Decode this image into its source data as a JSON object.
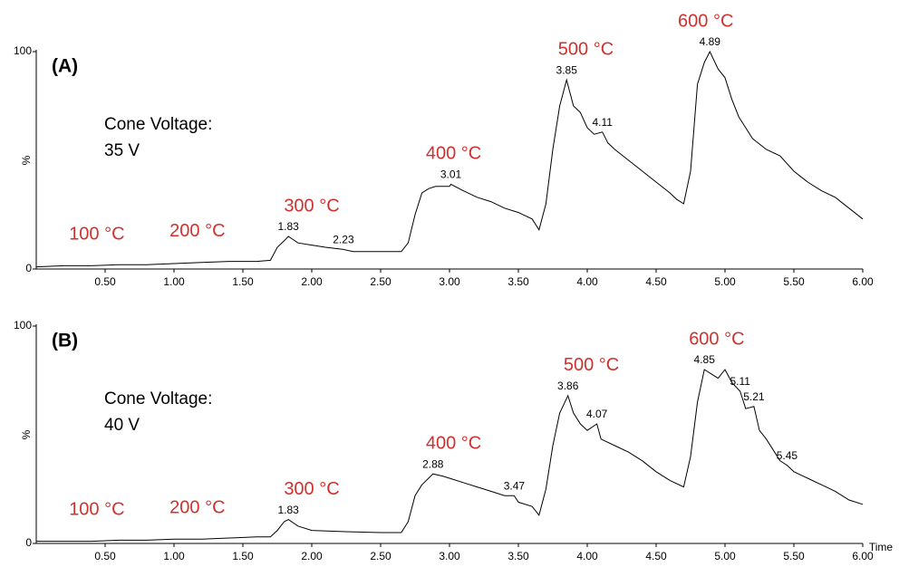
{
  "chart_data": [
    {
      "type": "line",
      "panel_label": "(A)",
      "note": [
        "Cone Voltage:",
        "35 V"
      ],
      "y_label": "%",
      "color": "#000000",
      "label_color": "#d0312d",
      "x": [
        0,
        0.2,
        0.4,
        0.6,
        0.8,
        1.0,
        1.2,
        1.4,
        1.6,
        1.7,
        1.75,
        1.8,
        1.83,
        1.9,
        2.0,
        2.1,
        2.23,
        2.3,
        2.5,
        2.65,
        2.7,
        2.75,
        2.8,
        2.85,
        2.9,
        3.0,
        3.01,
        3.1,
        3.2,
        3.3,
        3.4,
        3.5,
        3.6,
        3.65,
        3.7,
        3.75,
        3.8,
        3.85,
        3.9,
        3.95,
        4.0,
        4.05,
        4.11,
        4.15,
        4.2,
        4.3,
        4.4,
        4.5,
        4.6,
        4.65,
        4.7,
        4.75,
        4.8,
        4.85,
        4.89,
        4.95,
        5.0,
        5.05,
        5.1,
        5.15,
        5.2,
        5.3,
        5.4,
        5.5,
        5.6,
        5.7,
        5.8,
        5.9,
        6.0
      ],
      "values": [
        1,
        1.5,
        1.5,
        2,
        2,
        2.5,
        3,
        3.5,
        3.5,
        4,
        10,
        13,
        15,
        12,
        11,
        10,
        9,
        8,
        8,
        8,
        12,
        25,
        35,
        37,
        38,
        38,
        39,
        36,
        33,
        31,
        28,
        26,
        23,
        18,
        30,
        55,
        75,
        87,
        75,
        72,
        65,
        62,
        63,
        58,
        55,
        50,
        45,
        40,
        35,
        32,
        30,
        45,
        85,
        95,
        100,
        92,
        88,
        78,
        70,
        65,
        60,
        55,
        52,
        45,
        40,
        36,
        33,
        28,
        23
      ],
      "xlim": [
        0,
        6
      ],
      "ylim": [
        0,
        100
      ],
      "xticks": [
        {
          "value": 0.5,
          "label": "0.50"
        },
        {
          "value": 1,
          "label": "1.00"
        },
        {
          "value": 1.5,
          "label": "1.50"
        },
        {
          "value": 2,
          "label": "2.00"
        },
        {
          "value": 2.5,
          "label": "2.50"
        },
        {
          "value": 3,
          "label": "3.00"
        },
        {
          "value": 3.5,
          "label": "3.50"
        },
        {
          "value": 4,
          "label": "4.00"
        },
        {
          "value": 4.5,
          "label": "4.50"
        },
        {
          "value": 5,
          "label": "5.00"
        },
        {
          "value": 5.5,
          "label": "5.50"
        },
        {
          "value": 6,
          "label": "6.00"
        }
      ],
      "yticks": [
        0,
        100
      ],
      "peak_labels": [
        {
          "label": "1.83",
          "x": 1.83
        },
        {
          "label": "2.23",
          "x": 2.23
        },
        {
          "label": "3.01",
          "x": 3.01
        },
        {
          "label": "3.85",
          "x": 3.85
        },
        {
          "label": "4.11",
          "x": 4.11
        },
        {
          "label": "4.89",
          "x": 4.89
        }
      ],
      "temperature_labels": [
        {
          "text": "100 °C",
          "x": 0.44
        },
        {
          "text": "200 °C",
          "x": 1.17
        },
        {
          "text": "300 °C",
          "x": 2.0
        },
        {
          "text": "400 °C",
          "x": 3.03
        },
        {
          "text": "500 °C",
          "x": 3.99
        },
        {
          "text": "600 °C",
          "x": 4.86
        }
      ]
    },
    {
      "type": "line",
      "panel_label": "(B)",
      "note": [
        "Cone Voltage:",
        "40 V"
      ],
      "y_label": "%",
      "x_label": "Time",
      "color": "#000000",
      "label_color": "#d0312d",
      "x": [
        0,
        0.2,
        0.4,
        0.6,
        0.8,
        1.0,
        1.2,
        1.4,
        1.6,
        1.7,
        1.75,
        1.8,
        1.83,
        1.9,
        2.0,
        2.2,
        2.5,
        2.65,
        2.7,
        2.75,
        2.8,
        2.88,
        2.95,
        3.0,
        3.1,
        3.2,
        3.3,
        3.4,
        3.47,
        3.5,
        3.6,
        3.65,
        3.7,
        3.75,
        3.8,
        3.86,
        3.9,
        3.95,
        4.0,
        4.07,
        4.1,
        4.2,
        4.3,
        4.4,
        4.5,
        4.6,
        4.7,
        4.75,
        4.8,
        4.85,
        4.9,
        4.95,
        5.0,
        5.05,
        5.11,
        5.15,
        5.21,
        5.25,
        5.3,
        5.4,
        5.45,
        5.5,
        5.6,
        5.7,
        5.8,
        5.9,
        6.0
      ],
      "values": [
        1,
        1,
        1,
        1.5,
        1.5,
        2,
        2,
        2.5,
        3,
        3,
        6,
        10,
        11,
        8,
        6,
        5.5,
        5,
        5,
        10,
        22,
        27,
        32,
        31,
        30,
        28,
        26,
        24,
        22,
        22,
        19,
        17,
        13,
        25,
        45,
        60,
        68,
        60,
        55,
        52,
        55,
        48,
        45,
        42,
        38,
        33,
        29,
        26,
        40,
        65,
        80,
        78,
        76,
        80,
        74,
        70,
        62,
        63,
        52,
        48,
        38,
        36,
        33,
        30,
        27,
        24,
        20,
        18
      ],
      "xlim": [
        0,
        6
      ],
      "ylim": [
        0,
        100
      ],
      "xticks": [
        {
          "value": 0.5,
          "label": "0.50"
        },
        {
          "value": 1,
          "label": "1.00"
        },
        {
          "value": 1.5,
          "label": "1.50"
        },
        {
          "value": 2,
          "label": "2.00"
        },
        {
          "value": 2.5,
          "label": "2.50"
        },
        {
          "value": 3,
          "label": "3.00"
        },
        {
          "value": 3.5,
          "label": "3.50"
        },
        {
          "value": 4,
          "label": "4.00"
        },
        {
          "value": 4.5,
          "label": "4.50"
        },
        {
          "value": 5,
          "label": "5.00"
        },
        {
          "value": 5.5,
          "label": "5.50"
        },
        {
          "value": 6,
          "label": "6.00"
        }
      ],
      "yticks": [
        0,
        100
      ],
      "peak_labels": [
        {
          "label": "1.83",
          "x": 1.83
        },
        {
          "label": "2.88",
          "x": 2.88
        },
        {
          "label": "3.47",
          "x": 3.47
        },
        {
          "label": "3.86",
          "x": 3.86
        },
        {
          "label": "4.07",
          "x": 4.07
        },
        {
          "label": "4.85",
          "x": 4.85
        },
        {
          "label": "5.11",
          "x": 5.11
        },
        {
          "label": "5.21",
          "x": 5.21
        },
        {
          "label": "5.45",
          "x": 5.45
        }
      ],
      "temperature_labels": [
        {
          "text": "100 °C",
          "x": 0.44
        },
        {
          "text": "200 °C",
          "x": 1.17
        },
        {
          "text": "300 °C",
          "x": 2.0
        },
        {
          "text": "400 °C",
          "x": 3.03
        },
        {
          "text": "500 °C",
          "x": 4.03
        },
        {
          "text": "600 °C",
          "x": 4.94
        }
      ]
    }
  ]
}
